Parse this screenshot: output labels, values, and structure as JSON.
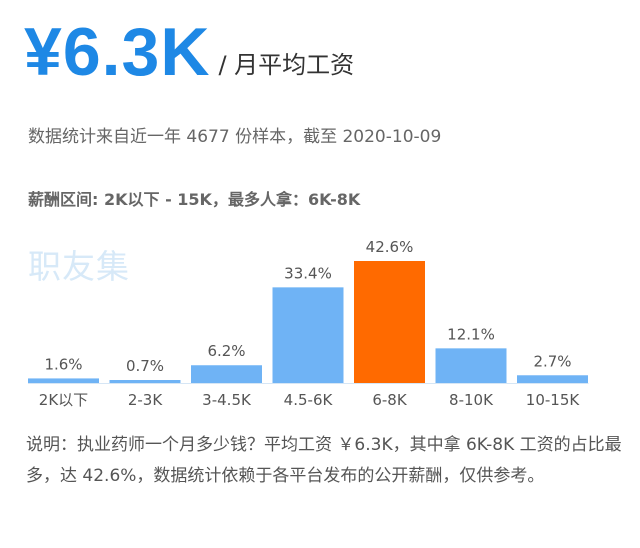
{
  "header": {
    "price": "¥6.3K",
    "unit": "/ 月平均工资",
    "meta": "数据统计来自近一年 4677 份样本，截至 2020-10-09",
    "range": "薪酬区间: 2K以下 - 15K，最多人拿：6K-8K"
  },
  "watermark": "职友集",
  "colors": {
    "primary": "#1E88E5",
    "bar": "#6FB3F5",
    "highlight": "#FF6A00"
  },
  "chart_data": {
    "type": "bar",
    "categories": [
      "2K以下",
      "2-3K",
      "3-4.5K",
      "4.5-6K",
      "6-8K",
      "8-10K",
      "10-15K"
    ],
    "values": [
      1.6,
      0.7,
      6.2,
      33.4,
      42.6,
      12.1,
      2.7
    ],
    "labels": [
      "1.6%",
      "0.7%",
      "6.2%",
      "33.4%",
      "42.6%",
      "12.1%",
      "2.7%"
    ],
    "highlight_index": 4,
    "title": "",
    "xlabel": "",
    "ylabel": ""
  },
  "note": "说明：执业药师一个月多少钱？平均工资 ￥6.3K，其中拿 6K-8K 工资的占比最多，达 42.6%，数据统计依赖于各平台发布的公开薪酬，仅供参考。"
}
